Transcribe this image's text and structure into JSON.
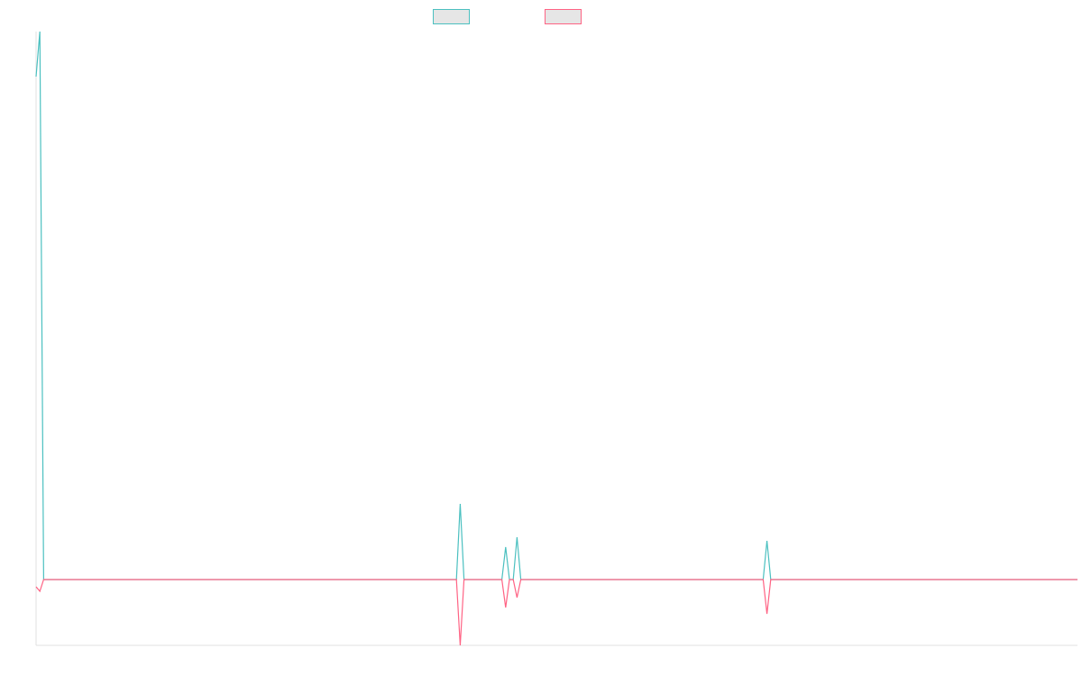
{
  "chart_data": {
    "type": "line",
    "x": [
      0,
      1,
      2,
      111,
      112,
      113,
      123,
      124,
      125,
      126,
      127,
      128,
      192,
      193,
      194,
      275
    ],
    "xlim": [
      0,
      275
    ],
    "ylim": [
      -73,
      608
    ],
    "series": [
      {
        "color": "#4bc0c0",
        "values": [
          558,
          608,
          0,
          0,
          84,
          0,
          0,
          36,
          0,
          0,
          47,
          0,
          0,
          43,
          0,
          0
        ]
      },
      {
        "color": "#ff6384",
        "values": [
          -8,
          -13,
          0,
          0,
          -73,
          0,
          0,
          -31,
          0,
          0,
          -20,
          0,
          0,
          -38,
          0,
          0
        ]
      }
    ],
    "legend": "top"
  }
}
